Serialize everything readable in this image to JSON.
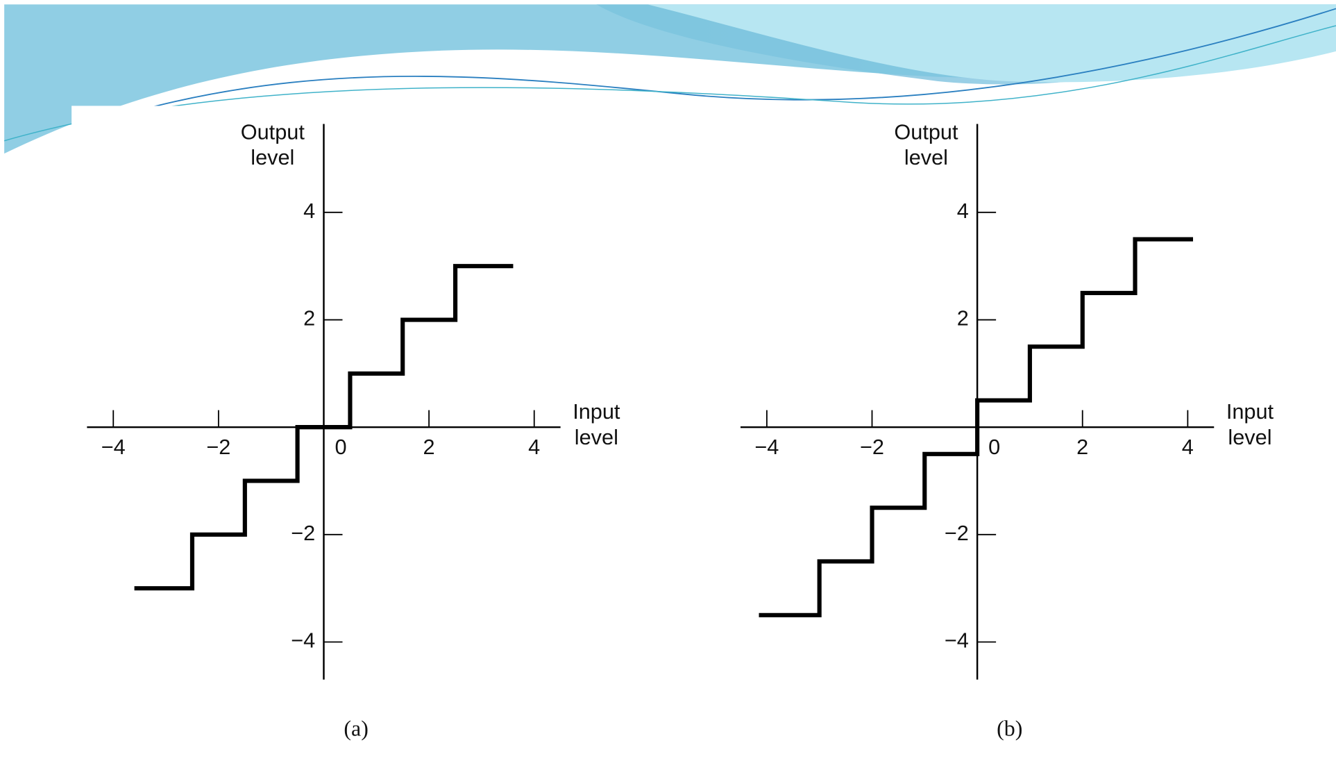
{
  "chart_data": [
    {
      "type": "line",
      "step": true,
      "color": "#000000",
      "x_label": "Input level",
      "y_label": "Output level",
      "caption": "(a)",
      "x": [
        -3.6,
        -2.5,
        -2.5,
        -1.5,
        -1.5,
        -0.5,
        -0.5,
        0.5,
        0.5,
        1.5,
        1.5,
        2.5,
        2.5,
        3.6
      ],
      "series": [
        {
          "values": [
            -3,
            -3,
            -2,
            -2,
            -1,
            -1,
            0,
            0,
            1,
            1,
            2,
            2,
            3,
            3
          ]
        }
      ],
      "xlim": [
        -4.5,
        4.5
      ],
      "ylim": [
        -4.7,
        5.6
      ],
      "xticks": [
        {
          "value": -4,
          "label": "−4"
        },
        {
          "value": -2,
          "label": "−2"
        },
        0,
        2,
        4
      ],
      "yticks": [
        {
          "value": -4,
          "label": "−4"
        },
        {
          "value": -2,
          "label": "−2"
        },
        2,
        4
      ]
    },
    {
      "type": "line",
      "step": true,
      "color": "#000000",
      "x_label": "Input level",
      "y_label": "Output level",
      "caption": "(b)",
      "x": [
        -4.15,
        -3,
        -3,
        -2,
        -2,
        -1,
        -1,
        0,
        0,
        1,
        1,
        2,
        2,
        3,
        3,
        4.1
      ],
      "series": [
        {
          "values": [
            -3.5,
            -3.5,
            -2.5,
            -2.5,
            -1.5,
            -1.5,
            -0.5,
            -0.5,
            0.5,
            0.5,
            1.5,
            1.5,
            2.5,
            2.5,
            3.5,
            3.5
          ]
        }
      ],
      "xlim": [
        -4.5,
        4.5
      ],
      "ylim": [
        -4.7,
        5.6
      ],
      "xticks": [
        {
          "value": -4,
          "label": "−4"
        },
        {
          "value": -2,
          "label": "−2"
        },
        0,
        2,
        4
      ],
      "yticks": [
        {
          "value": -4,
          "label": "−4"
        },
        {
          "value": -2,
          "label": "−2"
        },
        2,
        4
      ]
    }
  ]
}
